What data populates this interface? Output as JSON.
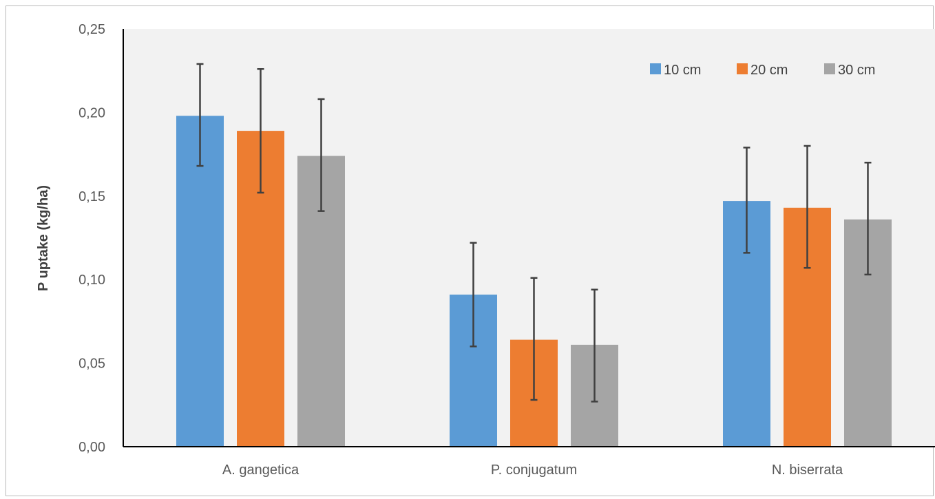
{
  "chart_data": {
    "type": "bar",
    "title": "",
    "xlabel": "",
    "ylabel": "P uptake (kg/ha)",
    "categories": [
      "A. gangetica",
      "P. conjugatum",
      "N. biserrata"
    ],
    "series": [
      {
        "name": "10 cm",
        "color": "#5b9bd5",
        "values": [
          0.198,
          0.091,
          0.147
        ],
        "error_low": [
          0.168,
          0.06,
          0.116
        ],
        "error_high": [
          0.229,
          0.122,
          0.179
        ]
      },
      {
        "name": "20 cm",
        "color": "#ed7d31",
        "values": [
          0.189,
          0.064,
          0.143
        ],
        "error_low": [
          0.152,
          0.028,
          0.107
        ],
        "error_high": [
          0.226,
          0.101,
          0.18
        ]
      },
      {
        "name": "30 cm",
        "color": "#a5a5a5",
        "values": [
          0.174,
          0.061,
          0.136
        ],
        "error_low": [
          0.141,
          0.027,
          0.103
        ],
        "error_high": [
          0.208,
          0.094,
          0.17
        ]
      }
    ],
    "ylim": [
      0,
      0.25
    ],
    "yticks": [
      "0,00",
      "0,05",
      "0,10",
      "0,15",
      "0,20",
      "0,25"
    ],
    "grid": false,
    "legend_position": "top-right",
    "plot_background": "#f2f2f2"
  }
}
